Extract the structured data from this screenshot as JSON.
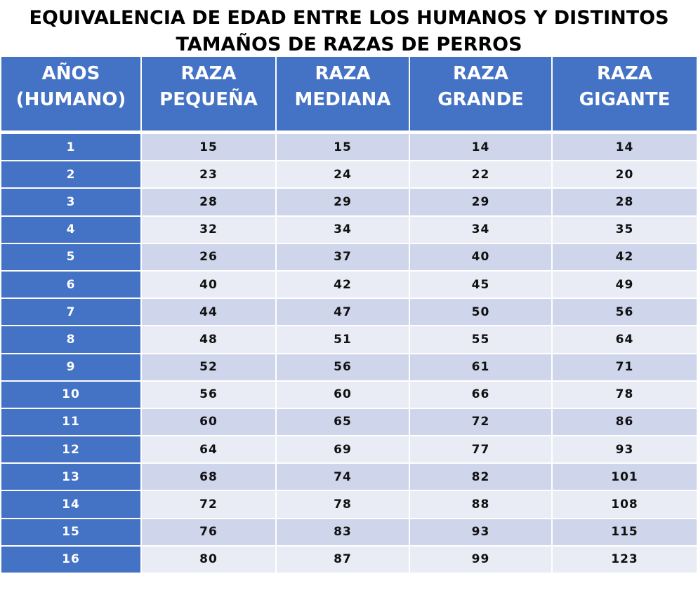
{
  "title_line1": "EQUIVALENCIA DE EDAD ENTRE LOS HUMANOS Y DISTINTOS",
  "title_line2": "TAMAÑOS DE RAZAS DE PERROS",
  "colors": {
    "header": "#4472c4",
    "row_odd": "#cfd5ea",
    "row_even": "#e9ebf5"
  },
  "chart_data": {
    "type": "table",
    "columns": [
      [
        "AÑOS",
        "(HUMANO)"
      ],
      [
        "RAZA",
        "PEQUEÑA"
      ],
      [
        "RAZA",
        "MEDIANA"
      ],
      [
        "RAZA",
        "GRANDE"
      ],
      [
        "RAZA",
        "GIGANTE"
      ]
    ],
    "rows": [
      [
        "1",
        "15",
        "15",
        "14",
        "14"
      ],
      [
        "2",
        "23",
        "24",
        "22",
        "20"
      ],
      [
        "3",
        "28",
        "29",
        "29",
        "28"
      ],
      [
        "4",
        "32",
        "34",
        "34",
        "35"
      ],
      [
        "5",
        "26",
        "37",
        "40",
        "42"
      ],
      [
        "6",
        "40",
        "42",
        "45",
        "49"
      ],
      [
        "7",
        "44",
        "47",
        "50",
        "56"
      ],
      [
        "8",
        "48",
        "51",
        "55",
        "64"
      ],
      [
        "9",
        "52",
        "56",
        "61",
        "71"
      ],
      [
        "10",
        "56",
        "60",
        "66",
        "78"
      ],
      [
        "11",
        "60",
        "65",
        "72",
        "86"
      ],
      [
        "12",
        "64",
        "69",
        "77",
        "93"
      ],
      [
        "13",
        "68",
        "74",
        "82",
        "101"
      ],
      [
        "14",
        "72",
        "78",
        "88",
        "108"
      ],
      [
        "15",
        "76",
        "83",
        "93",
        "115"
      ],
      [
        "16",
        "80",
        "87",
        "99",
        "123"
      ]
    ]
  }
}
